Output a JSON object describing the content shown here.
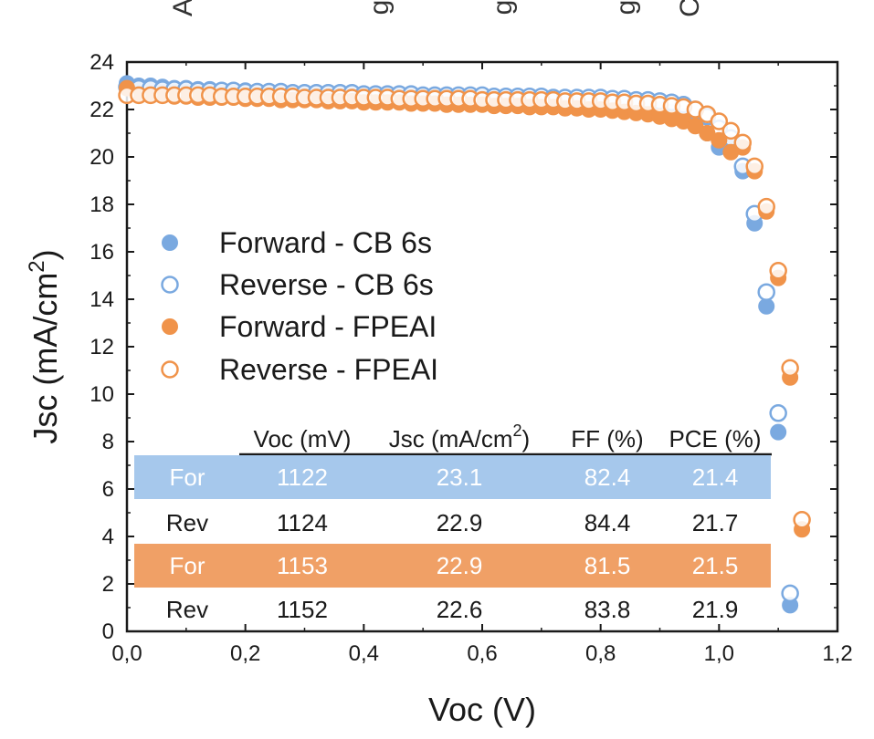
{
  "colors": {
    "blue": "#7aa9e0",
    "orange": "#f0934a",
    "axis": "#1a1a1a",
    "blue_band": "#a6c8ec",
    "orange_band": "#f0a066"
  },
  "chart_data": {
    "type": "scatter",
    "title": "",
    "xlabel": "Voc (V)",
    "ylabel": "Jsc (mA/cm2)",
    "xlim": [
      0,
      1.2
    ],
    "ylim": [
      0,
      24
    ],
    "x_ticks": [
      0,
      0.2,
      0.4,
      0.6,
      0.8,
      1.0,
      1.2
    ],
    "x_tick_labels": [
      "0,0",
      "0,2",
      "0,4",
      "0,6",
      "0,8",
      "1,0",
      "1,2"
    ],
    "y_ticks": [
      0,
      2,
      4,
      6,
      8,
      10,
      12,
      14,
      16,
      18,
      20,
      22,
      24
    ],
    "y_tick_labels": [
      "0",
      "2",
      "4",
      "6",
      "8",
      "10",
      "12",
      "14",
      "16",
      "18",
      "20",
      "22",
      "24"
    ],
    "series": [
      {
        "name": "Forward - CB 6s",
        "marker": "filled",
        "color": "blue",
        "x": [
          0,
          0.02,
          0.04,
          0.06,
          0.08,
          0.1,
          0.12,
          0.14,
          0.16,
          0.18,
          0.2,
          0.22,
          0.24,
          0.26,
          0.28,
          0.3,
          0.32,
          0.34,
          0.36,
          0.38,
          0.4,
          0.42,
          0.44,
          0.46,
          0.48,
          0.5,
          0.52,
          0.54,
          0.56,
          0.58,
          0.6,
          0.62,
          0.64,
          0.66,
          0.68,
          0.7,
          0.72,
          0.74,
          0.76,
          0.78,
          0.8,
          0.82,
          0.84,
          0.86,
          0.88,
          0.9,
          0.92,
          0.94,
          0.96,
          0.98,
          1.0,
          1.02,
          1.04,
          1.06,
          1.08,
          1.1,
          1.12
        ],
        "y": [
          23.1,
          23.0,
          23.0,
          22.95,
          22.9,
          22.9,
          22.85,
          22.85,
          22.8,
          22.8,
          22.8,
          22.75,
          22.75,
          22.75,
          22.7,
          22.7,
          22.7,
          22.7,
          22.65,
          22.65,
          22.65,
          22.6,
          22.6,
          22.6,
          22.6,
          22.55,
          22.55,
          22.55,
          22.5,
          22.5,
          22.5,
          22.45,
          22.45,
          22.45,
          22.4,
          22.4,
          22.4,
          22.35,
          22.35,
          22.3,
          22.3,
          22.25,
          22.2,
          22.15,
          22.1,
          22.0,
          21.9,
          21.7,
          21.4,
          21.0,
          20.4,
          20.6,
          19.4,
          17.2,
          13.7,
          8.4,
          1.1
        ]
      },
      {
        "name": "Reverse - CB 6s",
        "marker": "open",
        "color": "blue",
        "x": [
          0,
          0.02,
          0.04,
          0.06,
          0.08,
          0.1,
          0.12,
          0.14,
          0.16,
          0.18,
          0.2,
          0.22,
          0.24,
          0.26,
          0.28,
          0.3,
          0.32,
          0.34,
          0.36,
          0.38,
          0.4,
          0.42,
          0.44,
          0.46,
          0.48,
          0.5,
          0.52,
          0.54,
          0.56,
          0.58,
          0.6,
          0.62,
          0.64,
          0.66,
          0.68,
          0.7,
          0.72,
          0.74,
          0.76,
          0.78,
          0.8,
          0.82,
          0.84,
          0.86,
          0.88,
          0.9,
          0.92,
          0.94,
          0.96,
          0.98,
          1.0,
          1.02,
          1.04,
          1.06,
          1.08,
          1.1,
          1.12
        ],
        "y": [
          22.95,
          22.9,
          22.9,
          22.85,
          22.85,
          22.85,
          22.8,
          22.8,
          22.8,
          22.8,
          22.75,
          22.75,
          22.75,
          22.75,
          22.7,
          22.7,
          22.7,
          22.7,
          22.7,
          22.7,
          22.65,
          22.65,
          22.65,
          22.65,
          22.65,
          22.6,
          22.6,
          22.6,
          22.6,
          22.6,
          22.6,
          22.55,
          22.55,
          22.55,
          22.55,
          22.55,
          22.5,
          22.5,
          22.5,
          22.5,
          22.5,
          22.45,
          22.45,
          22.4,
          22.4,
          22.35,
          22.3,
          22.2,
          22.0,
          21.7,
          21.2,
          20.8,
          19.6,
          17.6,
          14.3,
          9.2,
          1.6
        ]
      },
      {
        "name": "Forward - FPEAI",
        "marker": "filled",
        "color": "orange",
        "x": [
          0,
          0.02,
          0.04,
          0.06,
          0.08,
          0.1,
          0.12,
          0.14,
          0.16,
          0.18,
          0.2,
          0.22,
          0.24,
          0.26,
          0.28,
          0.3,
          0.32,
          0.34,
          0.36,
          0.38,
          0.4,
          0.42,
          0.44,
          0.46,
          0.48,
          0.5,
          0.52,
          0.54,
          0.56,
          0.58,
          0.6,
          0.62,
          0.64,
          0.66,
          0.68,
          0.7,
          0.72,
          0.74,
          0.76,
          0.78,
          0.8,
          0.82,
          0.84,
          0.86,
          0.88,
          0.9,
          0.92,
          0.94,
          0.96,
          0.98,
          1.0,
          1.02,
          1.04,
          1.06,
          1.08,
          1.1,
          1.12,
          1.14
        ],
        "y": [
          22.9,
          22.6,
          22.6,
          22.6,
          22.55,
          22.55,
          22.5,
          22.5,
          22.5,
          22.5,
          22.45,
          22.45,
          22.45,
          22.4,
          22.4,
          22.4,
          22.4,
          22.35,
          22.35,
          22.35,
          22.3,
          22.3,
          22.3,
          22.3,
          22.25,
          22.25,
          22.25,
          22.2,
          22.2,
          22.2,
          22.2,
          22.15,
          22.15,
          22.15,
          22.1,
          22.1,
          22.1,
          22.05,
          22.05,
          22.0,
          22.0,
          21.95,
          21.9,
          21.85,
          21.8,
          21.7,
          21.6,
          21.5,
          21.3,
          21.0,
          20.7,
          20.2,
          20.4,
          19.4,
          17.7,
          14.9,
          10.7,
          4.3
        ]
      },
      {
        "name": "Reverse - FPEAI",
        "marker": "open",
        "color": "orange",
        "x": [
          0,
          0.02,
          0.04,
          0.06,
          0.08,
          0.1,
          0.12,
          0.14,
          0.16,
          0.18,
          0.2,
          0.22,
          0.24,
          0.26,
          0.28,
          0.3,
          0.32,
          0.34,
          0.36,
          0.38,
          0.4,
          0.42,
          0.44,
          0.46,
          0.48,
          0.5,
          0.52,
          0.54,
          0.56,
          0.58,
          0.6,
          0.62,
          0.64,
          0.66,
          0.68,
          0.7,
          0.72,
          0.74,
          0.76,
          0.78,
          0.8,
          0.82,
          0.84,
          0.86,
          0.88,
          0.9,
          0.92,
          0.94,
          0.96,
          0.98,
          1.0,
          1.02,
          1.04,
          1.06,
          1.08,
          1.1,
          1.12,
          1.14
        ],
        "y": [
          22.6,
          22.6,
          22.6,
          22.6,
          22.6,
          22.6,
          22.6,
          22.6,
          22.55,
          22.55,
          22.55,
          22.55,
          22.55,
          22.55,
          22.55,
          22.5,
          22.5,
          22.5,
          22.5,
          22.5,
          22.5,
          22.5,
          22.5,
          22.45,
          22.45,
          22.45,
          22.45,
          22.45,
          22.45,
          22.45,
          22.4,
          22.4,
          22.4,
          22.4,
          22.4,
          22.4,
          22.4,
          22.35,
          22.35,
          22.35,
          22.35,
          22.3,
          22.3,
          22.25,
          22.25,
          22.2,
          22.15,
          22.1,
          22.0,
          21.8,
          21.5,
          21.1,
          20.6,
          19.6,
          17.9,
          15.2,
          11.1,
          4.7
        ]
      }
    ],
    "legend": {
      "position": "center-left",
      "entries": [
        "Forward - CB 6s",
        "Reverse - CB 6s",
        "Forward - FPEAI",
        "Reverse - FPEAI"
      ]
    },
    "table": {
      "headers": [
        "Voc (mV)",
        "Jsc (mA/cm",
        "FF (%)",
        "PCE (%)"
      ],
      "superscript": "2",
      "rows": [
        {
          "label": "For",
          "band": "blue",
          "values": [
            "1122",
            "23.1",
            "82.4",
            "21.4"
          ]
        },
        {
          "label": "Rev",
          "band": "none",
          "values": [
            "1124",
            "22.9",
            "84.4",
            "21.7"
          ]
        },
        {
          "label": "For",
          "band": "orange",
          "values": [
            "1153",
            "22.9",
            "81.5",
            "21.5"
          ]
        },
        {
          "label": "Rev",
          "band": "none",
          "values": [
            "1152",
            "22.6",
            "83.8",
            "21.9"
          ]
        }
      ]
    },
    "top_labels": [
      "A",
      "g",
      "g",
      "g",
      "C"
    ]
  }
}
